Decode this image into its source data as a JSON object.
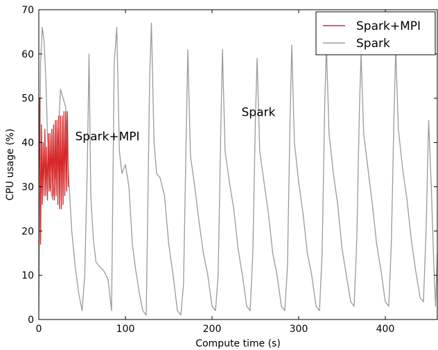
{
  "chart_data": {
    "type": "line",
    "xlabel": "Compute time (s)",
    "ylabel": "CPU usage (%)",
    "xlim": [
      0,
      460
    ],
    "ylim": [
      0,
      70
    ],
    "xticks": [
      "0",
      "100",
      "200",
      "300",
      "400"
    ],
    "yticks": [
      "0",
      "10",
      "20",
      "30",
      "40",
      "50",
      "60",
      "70"
    ],
    "grid": false,
    "legend_position": "top-right",
    "annotations": [
      {
        "text": "Spark+MPI",
        "x": 42,
        "y": 40.5
      },
      {
        "text": "Spark",
        "x": 234,
        "y": 46
      }
    ],
    "series": [
      {
        "name": "Spark+MPI",
        "color": "#d62728",
        "x": [
          0,
          1,
          2,
          3,
          4,
          5,
          6,
          7,
          8,
          9,
          10,
          11,
          12,
          13,
          14,
          15,
          16,
          17,
          18,
          19,
          20,
          21,
          22,
          23,
          24,
          25,
          26,
          27,
          28,
          29,
          30,
          31,
          32,
          33,
          34
        ],
        "y": [
          30,
          50,
          17,
          44,
          26,
          40,
          28,
          43,
          28,
          39,
          27,
          42,
          29,
          42,
          29,
          43,
          28,
          44,
          27,
          45,
          28,
          45,
          26,
          46,
          25,
          46,
          25,
          46,
          26,
          47,
          28,
          47,
          29,
          47,
          30
        ]
      },
      {
        "name": "Spark",
        "color": "#999999",
        "x": [
          0,
          2,
          4,
          6,
          8,
          10,
          13,
          16,
          19,
          22,
          25,
          28,
          31,
          34,
          38,
          42,
          46,
          50,
          53,
          56,
          58,
          60,
          63,
          66,
          70,
          75,
          80,
          84,
          87,
          90,
          93,
          96,
          100,
          104,
          108,
          112,
          116,
          120,
          124,
          128,
          130,
          133,
          136,
          140,
          145,
          150,
          155,
          160,
          164,
          167,
          170,
          172,
          175,
          180,
          185,
          190,
          195,
          200,
          204,
          207,
          210,
          212,
          215,
          220,
          225,
          230,
          235,
          240,
          244,
          247,
          250,
          252,
          255,
          260,
          265,
          270,
          275,
          280,
          284,
          287,
          290,
          292,
          295,
          300,
          305,
          310,
          315,
          320,
          324,
          327,
          330,
          332,
          335,
          340,
          345,
          350,
          355,
          360,
          364,
          367,
          370,
          372,
          375,
          380,
          385,
          390,
          395,
          400,
          404,
          407,
          410,
          412,
          415,
          420,
          425,
          430,
          435,
          440,
          444,
          447,
          450,
          453,
          456,
          458,
          460
        ],
        "y": [
          2,
          58,
          66,
          63,
          55,
          42,
          30,
          27,
          33,
          40,
          52,
          50,
          48,
          34,
          20,
          12,
          6,
          2,
          10,
          35,
          60,
          28,
          18,
          13,
          12,
          11,
          9,
          2,
          58,
          66,
          38,
          33,
          35,
          30,
          17,
          11,
          6,
          2,
          1,
          55,
          67,
          40,
          33,
          32,
          28,
          17,
          10,
          2,
          1,
          8,
          40,
          61,
          37,
          30,
          22,
          15,
          10,
          3,
          2,
          10,
          42,
          61,
          38,
          31,
          25,
          16,
          10,
          3,
          2,
          15,
          45,
          59,
          38,
          31,
          24,
          15,
          10,
          3,
          2,
          12,
          45,
          62,
          40,
          31,
          24,
          15,
          10,
          3,
          2,
          15,
          48,
          62,
          42,
          33,
          26,
          16,
          10,
          4,
          3,
          18,
          47,
          60,
          42,
          34,
          26,
          17,
          11,
          4,
          3,
          18,
          46,
          61,
          43,
          34,
          27,
          18,
          11,
          5,
          4,
          20,
          45,
          30,
          12,
          3,
          15
        ]
      }
    ]
  }
}
